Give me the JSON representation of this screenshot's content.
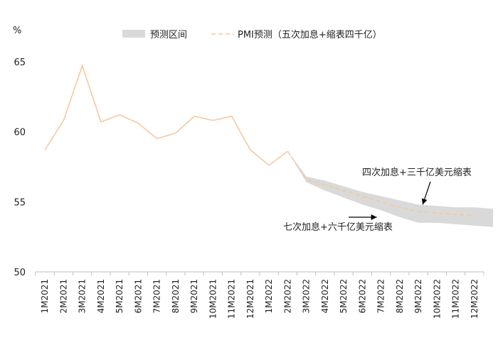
{
  "chart_data": {
    "type": "line",
    "yunit": "%",
    "ylim": [
      50,
      66
    ],
    "yticks": [
      50,
      55,
      60,
      65
    ],
    "categories": [
      "1M2021",
      "2M2021",
      "3M2021",
      "4M2021",
      "5M2021",
      "6M2021",
      "7M2021",
      "8M2021",
      "9M2021",
      "10M2021",
      "11M2021",
      "12M2021",
      "1M2022",
      "2M2022",
      "3M2022",
      "4M2022",
      "5M2022",
      "6M2022",
      "7M2022",
      "8M2022",
      "9M2022",
      "10M2022",
      "11M2022",
      "12M2022"
    ],
    "series": [
      {
        "name": "",
        "style": "solid",
        "color": "#f8c8a0",
        "values": [
          58.7,
          60.8,
          64.7,
          60.7,
          61.2,
          60.6,
          59.5,
          59.9,
          61.1,
          60.8,
          61.1,
          58.7,
          57.6,
          58.6,
          null,
          null,
          null,
          null,
          null,
          null,
          null,
          null,
          null,
          null
        ]
      },
      {
        "name": "PMI预测（五次加息+缩表四千亿）",
        "style": "dashed",
        "color": "#f5c89a",
        "values": [
          null,
          null,
          null,
          null,
          null,
          null,
          null,
          null,
          null,
          null,
          null,
          null,
          null,
          58.6,
          56.6,
          56.2,
          55.8,
          55.4,
          55.0,
          54.6,
          54.3,
          54.2,
          54.1,
          54.0
        ]
      }
    ],
    "band": {
      "name": "预测区间",
      "color": "#d9d9d9",
      "start_index": 13,
      "upper": [
        58.6,
        56.8,
        56.5,
        56.1,
        55.7,
        55.4,
        55.1,
        54.8,
        54.7,
        54.6,
        54.6,
        54.5
      ],
      "lower": [
        58.6,
        56.4,
        55.8,
        55.3,
        54.8,
        54.4,
        53.9,
        53.5,
        53.5,
        53.4,
        53.3,
        53.2
      ]
    },
    "annotations": [
      {
        "text": "四次加息+三千亿美元缩表",
        "arrow_to": {
          "x": "9M2022",
          "y": 54.7
        }
      },
      {
        "text": "七次加息+六千亿美元缩表",
        "arrow_to": {
          "x": "7M2022",
          "y": 54.0
        }
      }
    ],
    "legend": [
      "预测区间",
      "PMI预测（五次加息+缩表四千亿）"
    ],
    "legend_position": "top",
    "grid": false
  }
}
